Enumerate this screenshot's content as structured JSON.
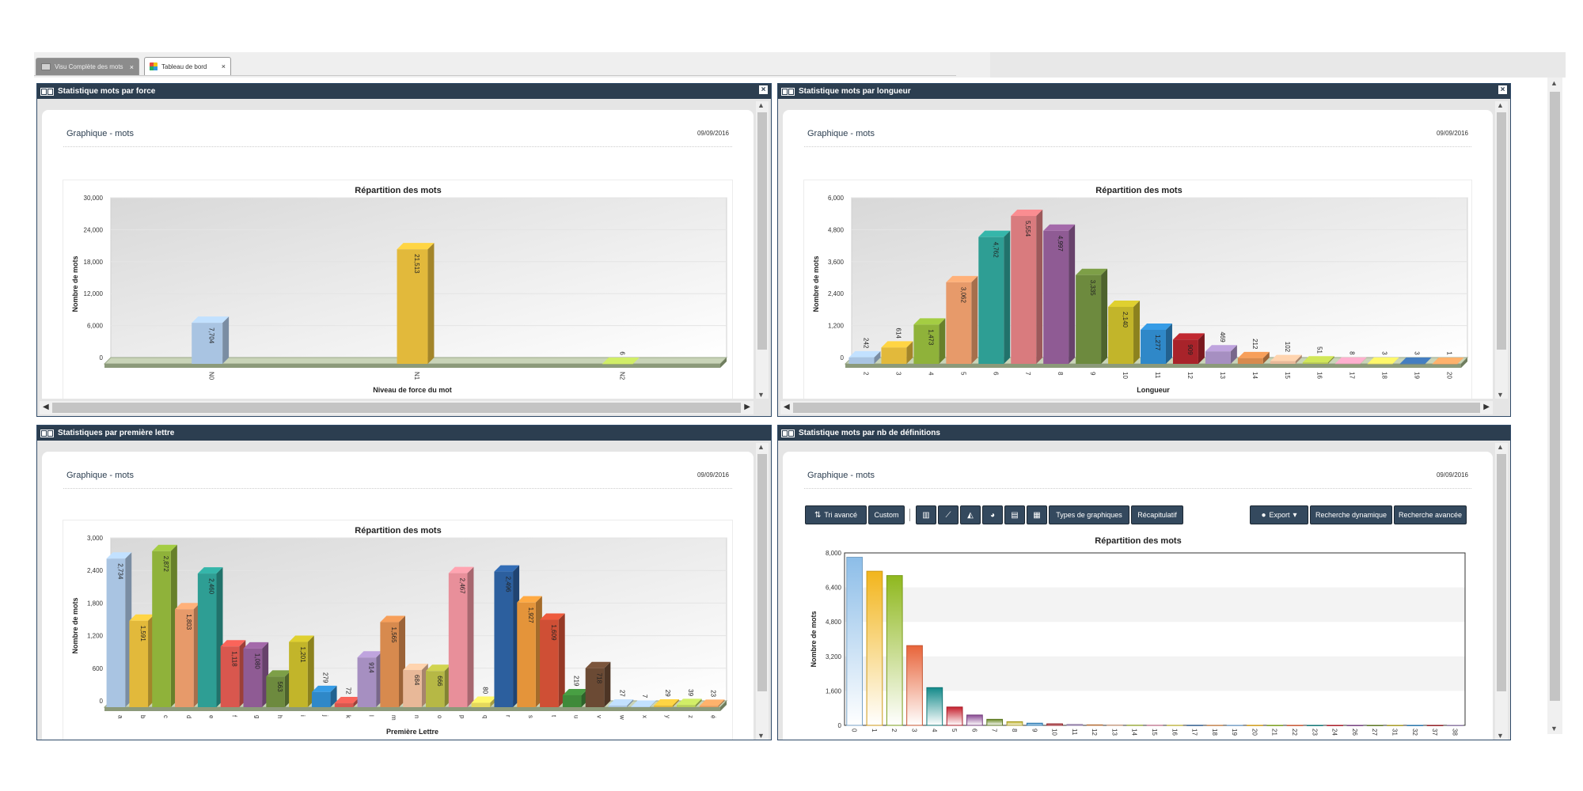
{
  "tabs": [
    {
      "label": "Visu Complète des mots"
    },
    {
      "label": "Tableau de bord"
    }
  ],
  "panels": [
    {
      "header": "Statistique mots par force",
      "graph_title": "Graphique - mots",
      "date": "09/09/2016"
    },
    {
      "header": "Statistique mots par longueur",
      "graph_title": "Graphique - mots",
      "date": "09/09/2016"
    },
    {
      "header": "Statistiques par première lettre",
      "graph_title": "Graphique - mots",
      "date": "09/09/2016"
    },
    {
      "header": "Statistique mots par nb de définitions",
      "graph_title": "Graphique - mots",
      "date": "09/09/2016"
    }
  ],
  "toolbar": {
    "tri_label": "Tri avancé",
    "custom_label": "Custom",
    "types_label": "Types de graphiques",
    "recap_label": "Récapitulatif",
    "export_label": "Export",
    "rech_dyn_label": "Recherche dynamique",
    "rech_av_label": "Recherche avancée",
    "icons": [
      "bar-chart-icon",
      "line-chart-icon",
      "area-chart-icon",
      "pie-chart-icon",
      "column-chart-icon",
      "stacked-chart-icon"
    ]
  },
  "chart_data": [
    {
      "type": "bar",
      "title": "Répartition des mots",
      "xlabel": "Niveau de force du mot",
      "ylabel": "Nombre de mots",
      "categories": [
        "N0",
        "N1",
        "N2"
      ],
      "values": [
        7704,
        21513,
        6
      ],
      "ylim": [
        0,
        30000
      ],
      "yticks": [
        "0",
        "6,000",
        "12,000",
        "18,000",
        "24,000",
        "30,000"
      ],
      "colors": [
        "#a9c4e2",
        "#e2b93b",
        "#b6cf5a"
      ]
    },
    {
      "type": "bar",
      "title": "Répartition des mots",
      "xlabel": "Longueur",
      "ylabel": "Nombre de mots",
      "categories": [
        "2",
        "3",
        "4",
        "5",
        "6",
        "7",
        "8",
        "9",
        "10",
        "11",
        "12",
        "13",
        "14",
        "15",
        "16",
        "17",
        "18",
        "19",
        "20"
      ],
      "values": [
        242,
        614,
        1473,
        3062,
        4762,
        5554,
        4997,
        3335,
        2140,
        1277,
        909,
        469,
        212,
        102,
        51,
        8,
        3,
        3,
        1
      ],
      "ylim": [
        0,
        6000
      ],
      "yticks": [
        "0",
        "1,200",
        "2,400",
        "3,600",
        "4,800",
        "6,000"
      ],
      "colors": [
        "#a9c4e2",
        "#e2b93b",
        "#8fb23a",
        "#e79a6a",
        "#2e9e94",
        "#d97b7e",
        "#8f5b94",
        "#6d8a3e",
        "#c2b52a",
        "#2f88c8",
        "#a8232a",
        "#a68fc1",
        "#d78a4e",
        "#e8b898",
        "#b6c94d",
        "#e899b4",
        "#e5d85c",
        "#3b6ea8",
        "#e59b5e"
      ]
    },
    {
      "type": "bar",
      "title": "Répartition des mots",
      "xlabel": "Première Lettre",
      "ylabel": "Nombre de mots",
      "categories": [
        "a",
        "b",
        "c",
        "d",
        "e",
        "f",
        "g",
        "h",
        "i",
        "j",
        "k",
        "l",
        "m",
        "n",
        "o",
        "p",
        "q",
        "r",
        "s",
        "t",
        "u",
        "v",
        "w",
        "x",
        "y",
        "z",
        "é"
      ],
      "values": [
        2734,
        1591,
        2872,
        1803,
        2460,
        1118,
        1080,
        563,
        1201,
        279,
        72,
        914,
        1565,
        684,
        666,
        2467,
        80,
        2496,
        1927,
        1609,
        219,
        718,
        27,
        7,
        29,
        39,
        23
      ],
      "ylim": [
        0,
        3000
      ],
      "yticks": [
        "0",
        "600",
        "1,200",
        "1,800",
        "2,400",
        "3,000"
      ],
      "colors": [
        "#a9c4e2",
        "#e2b93b",
        "#8fb23a",
        "#e79a6a",
        "#2e9e94",
        "#d9574e",
        "#8f5b94",
        "#6d8a3e",
        "#c2b52a",
        "#2f88c8",
        "#d9574e",
        "#a68fc1",
        "#d78a4e",
        "#e8b898",
        "#b6b845",
        "#e88f9a",
        "#e5d85c",
        "#2c5f9e",
        "#e4943a",
        "#cf4f35",
        "#3f8a3a",
        "#6b4a34",
        "#a9c4e2",
        "#a9c4e2",
        "#e2b93b",
        "#b6cf5a",
        "#e59b5e"
      ]
    },
    {
      "type": "bar",
      "title": "Répartition des mots",
      "xlabel": "",
      "ylabel": "Nombre de mots",
      "categories": [
        "0",
        "1",
        "2",
        "3",
        "4",
        "5",
        "6",
        "7",
        "8",
        "9",
        "10",
        "11",
        "12",
        "13",
        "14",
        "15",
        "16",
        "17",
        "18",
        "19",
        "20",
        "21",
        "22",
        "23",
        "24",
        "26",
        "27",
        "31",
        "32",
        "37",
        "38"
      ],
      "values": [
        7800,
        7150,
        6950,
        3700,
        1750,
        850,
        480,
        280,
        170,
        100,
        70,
        40,
        25,
        15,
        10,
        8,
        6,
        5,
        4,
        3,
        3,
        2,
        2,
        1,
        1,
        1,
        1,
        1,
        1,
        1,
        1
      ],
      "ylim": [
        0,
        8000
      ],
      "yticks": [
        "0",
        "1,600",
        "3,200",
        "4,800",
        "6,400",
        "8,000"
      ],
      "colors": [
        "#8cbde8",
        "#f2b51c",
        "#8fb81e",
        "#e8643a",
        "#138a8a",
        "#c6202e",
        "#8a4a94",
        "#6a8a26",
        "#c2b52a",
        "#2f88c8",
        "#a8232a",
        "#a68fc1",
        "#d78a4e",
        "#e8b898",
        "#b6c94d",
        "#e899b4",
        "#e5d85c",
        "#3b6ea8",
        "#e59b5e",
        "#8cbde8",
        "#f2b51c",
        "#8fb81e",
        "#e8643a",
        "#138a8a",
        "#c6202e",
        "#8a4a94",
        "#6a8a26",
        "#c2b52a",
        "#2f88c8",
        "#a8232a",
        "#a68fc1"
      ]
    }
  ]
}
